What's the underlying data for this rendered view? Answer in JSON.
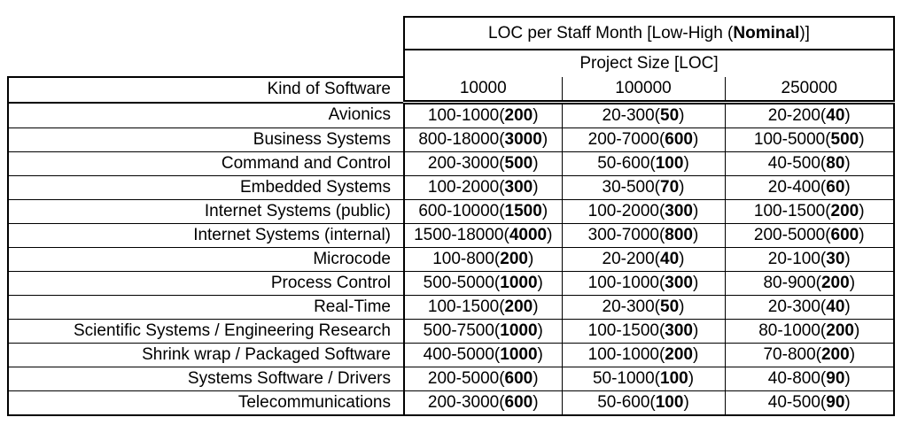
{
  "table": {
    "title": {
      "prefix": "LOC per Staff Month [Low-High (",
      "bold": "Nominal",
      "suffix": ")]"
    },
    "subtitle": "Project Size [LOC]",
    "row_header": "Kind of Software",
    "size_columns": [
      "10000",
      "100000",
      "250000"
    ],
    "rows": [
      {
        "kind": "Avionics",
        "cells": [
          {
            "range": "100-1000",
            "nominal": "200"
          },
          {
            "range": "20-300",
            "nominal": "50"
          },
          {
            "range": "20-200",
            "nominal": "40"
          }
        ]
      },
      {
        "kind": "Business Systems",
        "cells": [
          {
            "range": "800-18000",
            "nominal": "3000"
          },
          {
            "range": "200-7000",
            "nominal": "600"
          },
          {
            "range": "100-5000",
            "nominal": "500"
          }
        ]
      },
      {
        "kind": "Command and Control",
        "cells": [
          {
            "range": "200-3000",
            "nominal": "500"
          },
          {
            "range": "50-600",
            "nominal": "100"
          },
          {
            "range": "40-500",
            "nominal": "80"
          }
        ]
      },
      {
        "kind": "Embedded Systems",
        "cells": [
          {
            "range": "100-2000",
            "nominal": "300"
          },
          {
            "range": "30-500",
            "nominal": "70"
          },
          {
            "range": "20-400",
            "nominal": "60"
          }
        ]
      },
      {
        "kind": "Internet Systems (public)",
        "cells": [
          {
            "range": "600-10000",
            "nominal": "1500"
          },
          {
            "range": "100-2000",
            "nominal": "300"
          },
          {
            "range": "100-1500",
            "nominal": "200"
          }
        ]
      },
      {
        "kind": "Internet Systems (internal)",
        "cells": [
          {
            "range": "1500-18000",
            "nominal": "4000"
          },
          {
            "range": "300-7000",
            "nominal": "800"
          },
          {
            "range": "200-5000",
            "nominal": "600"
          }
        ]
      },
      {
        "kind": "Microcode",
        "cells": [
          {
            "range": "100-800",
            "nominal": "200"
          },
          {
            "range": "20-200",
            "nominal": "40"
          },
          {
            "range": "20-100",
            "nominal": "30"
          }
        ]
      },
      {
        "kind": "Process Control",
        "cells": [
          {
            "range": "500-5000",
            "nominal": "1000"
          },
          {
            "range": "100-1000",
            "nominal": "300"
          },
          {
            "range": "80-900",
            "nominal": "200"
          }
        ]
      },
      {
        "kind": "Real-Time",
        "cells": [
          {
            "range": "100-1500",
            "nominal": "200"
          },
          {
            "range": "20-300",
            "nominal": "50"
          },
          {
            "range": "20-300",
            "nominal": "40"
          }
        ]
      },
      {
        "kind": "Scientific Systems / Engineering Research",
        "cells": [
          {
            "range": "500-7500",
            "nominal": "1000"
          },
          {
            "range": "100-1500",
            "nominal": "300"
          },
          {
            "range": "80-1000",
            "nominal": "200"
          }
        ]
      },
      {
        "kind": "Shrink wrap / Packaged Software",
        "cells": [
          {
            "range": "400-5000",
            "nominal": "1000"
          },
          {
            "range": "100-1000",
            "nominal": "200"
          },
          {
            "range": "70-800",
            "nominal": "200"
          }
        ]
      },
      {
        "kind": "Systems Software / Drivers",
        "cells": [
          {
            "range": "200-5000",
            "nominal": "600"
          },
          {
            "range": "50-1000",
            "nominal": "100"
          },
          {
            "range": "40-800",
            "nominal": "90"
          }
        ]
      },
      {
        "kind": "Telecommunications",
        "cells": [
          {
            "range": "200-3000",
            "nominal": "600"
          },
          {
            "range": "50-600",
            "nominal": "100"
          },
          {
            "range": "40-500",
            "nominal": "90"
          }
        ]
      }
    ]
  },
  "colors": {
    "border": "#000000",
    "text": "#000000",
    "background": "#ffffff"
  }
}
